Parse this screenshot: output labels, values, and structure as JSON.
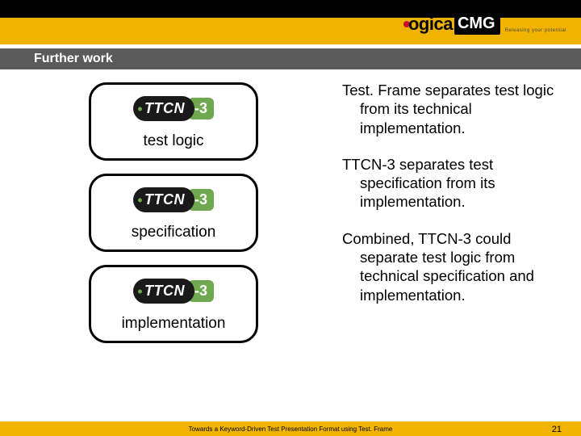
{
  "colors": {
    "band": "#f0b400",
    "titlebar": "#5a5a5a",
    "black": "#000000",
    "white": "#ffffff",
    "ttcn_green": "#6fa84f",
    "logo_red": "#c8102e"
  },
  "logo": {
    "part1": "ogica",
    "part2": "CMG",
    "tagline": "Releasing your potential"
  },
  "title": "Further work",
  "boxes": [
    {
      "badge_text": "TTCN",
      "badge_suffix": "-3",
      "label": "test logic"
    },
    {
      "badge_text": "TTCN",
      "badge_suffix": "-3",
      "label": "specification"
    },
    {
      "badge_text": "TTCN",
      "badge_suffix": "-3",
      "label": "implementation"
    }
  ],
  "paragraphs": [
    "Test. Frame separates test logic from its technical implementation.",
    "TTCN-3 separates test specification from its implementation.",
    "Combined, TTCN-3 could separate test logic from technical specification and implementation."
  ],
  "footer": "Towards a Keyword-Driven Test Presentation Format using Test. Frame",
  "page_number": "21"
}
